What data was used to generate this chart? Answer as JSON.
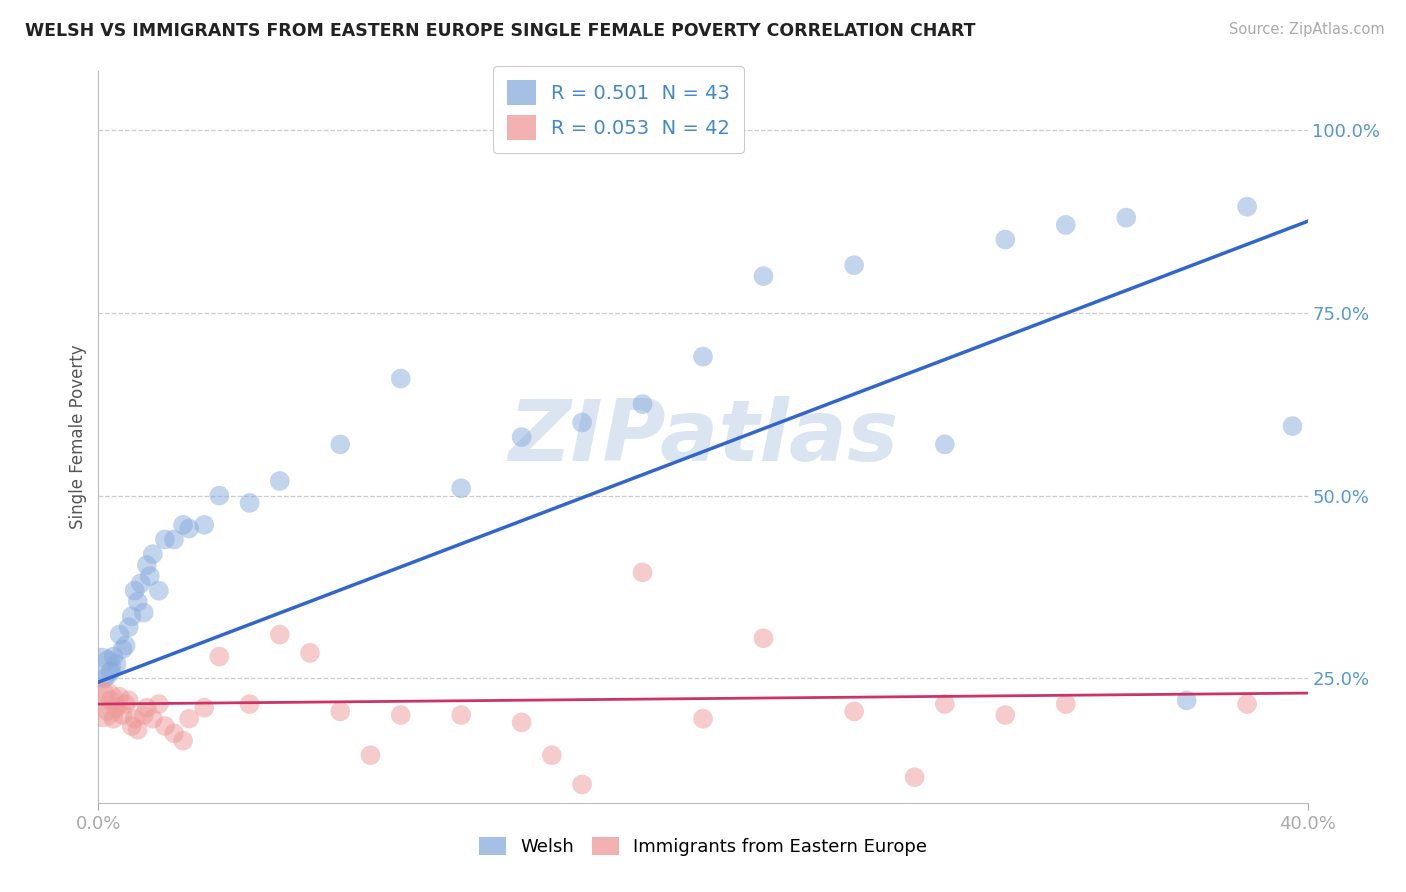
{
  "title": "WELSH VS IMMIGRANTS FROM EASTERN EUROPE SINGLE FEMALE POVERTY CORRELATION CHART",
  "source": "Source: ZipAtlas.com",
  "ylabel": "Single Female Poverty",
  "watermark": "ZIPatlas",
  "xlim": [
    0.0,
    0.4
  ],
  "ylim": [
    0.08,
    1.08
  ],
  "yticks": [
    0.25,
    0.5,
    0.75,
    1.0
  ],
  "ytick_labels": [
    "25.0%",
    "50.0%",
    "75.0%",
    "100.0%"
  ],
  "xtick_vals": [
    0.0,
    0.4
  ],
  "xtick_labels": [
    "0.0%",
    "40.0%"
  ],
  "legend_blue_R": "0.501",
  "legend_blue_N": "43",
  "legend_pink_R": "0.053",
  "legend_pink_N": "42",
  "blue_color": "#88aadd",
  "pink_color": "#ee9999",
  "trend_blue": "#3366cc",
  "trend_pink": "#cc3366",
  "blue_scatter_x": [
    0.001,
    0.002,
    0.003,
    0.004,
    0.005,
    0.006,
    0.007,
    0.008,
    0.009,
    0.01,
    0.011,
    0.012,
    0.013,
    0.014,
    0.015,
    0.016,
    0.017,
    0.018,
    0.02,
    0.022,
    0.025,
    0.028,
    0.03,
    0.035,
    0.04,
    0.05,
    0.06,
    0.08,
    0.1,
    0.12,
    0.14,
    0.16,
    0.18,
    0.2,
    0.22,
    0.25,
    0.28,
    0.3,
    0.32,
    0.34,
    0.36,
    0.38,
    0.395
  ],
  "blue_scatter_y": [
    0.265,
    0.25,
    0.275,
    0.26,
    0.28,
    0.27,
    0.31,
    0.29,
    0.295,
    0.32,
    0.335,
    0.37,
    0.355,
    0.38,
    0.34,
    0.405,
    0.39,
    0.42,
    0.37,
    0.44,
    0.44,
    0.46,
    0.455,
    0.46,
    0.5,
    0.49,
    0.52,
    0.57,
    0.66,
    0.51,
    0.58,
    0.6,
    0.625,
    0.69,
    0.8,
    0.815,
    0.57,
    0.85,
    0.87,
    0.88,
    0.22,
    0.895,
    0.595
  ],
  "blue_sizes": [
    800,
    200,
    200,
    200,
    200,
    200,
    200,
    200,
    200,
    200,
    200,
    200,
    200,
    200,
    200,
    200,
    200,
    200,
    200,
    200,
    200,
    200,
    200,
    200,
    200,
    200,
    200,
    200,
    200,
    200,
    200,
    200,
    200,
    200,
    200,
    200,
    200,
    200,
    200,
    200,
    200,
    200,
    200
  ],
  "pink_scatter_x": [
    0.001,
    0.002,
    0.003,
    0.004,
    0.005,
    0.006,
    0.007,
    0.008,
    0.009,
    0.01,
    0.011,
    0.012,
    0.013,
    0.015,
    0.016,
    0.018,
    0.02,
    0.022,
    0.025,
    0.028,
    0.03,
    0.035,
    0.04,
    0.05,
    0.06,
    0.07,
    0.08,
    0.09,
    0.1,
    0.12,
    0.14,
    0.15,
    0.16,
    0.18,
    0.2,
    0.22,
    0.25,
    0.27,
    0.28,
    0.3,
    0.32,
    0.38
  ],
  "pink_scatter_y": [
    0.215,
    0.23,
    0.205,
    0.22,
    0.195,
    0.21,
    0.225,
    0.2,
    0.215,
    0.22,
    0.185,
    0.195,
    0.18,
    0.2,
    0.21,
    0.195,
    0.215,
    0.185,
    0.175,
    0.165,
    0.195,
    0.21,
    0.28,
    0.215,
    0.31,
    0.285,
    0.205,
    0.145,
    0.2,
    0.2,
    0.19,
    0.145,
    0.105,
    0.395,
    0.195,
    0.305,
    0.205,
    0.115,
    0.215,
    0.2,
    0.215,
    0.215
  ],
  "pink_sizes": [
    1100,
    200,
    200,
    200,
    200,
    200,
    200,
    200,
    200,
    200,
    200,
    200,
    200,
    200,
    200,
    200,
    200,
    200,
    200,
    200,
    200,
    200,
    200,
    200,
    200,
    200,
    200,
    200,
    200,
    200,
    200,
    200,
    200,
    200,
    200,
    200,
    200,
    200,
    200,
    200,
    200,
    200
  ],
  "trend_blue_x0": 0.0,
  "trend_blue_y0": 0.245,
  "trend_blue_x1": 0.4,
  "trend_blue_y1": 0.875,
  "trend_pink_x0": 0.0,
  "trend_pink_y0": 0.215,
  "trend_pink_x1": 0.4,
  "trend_pink_y1": 0.23
}
